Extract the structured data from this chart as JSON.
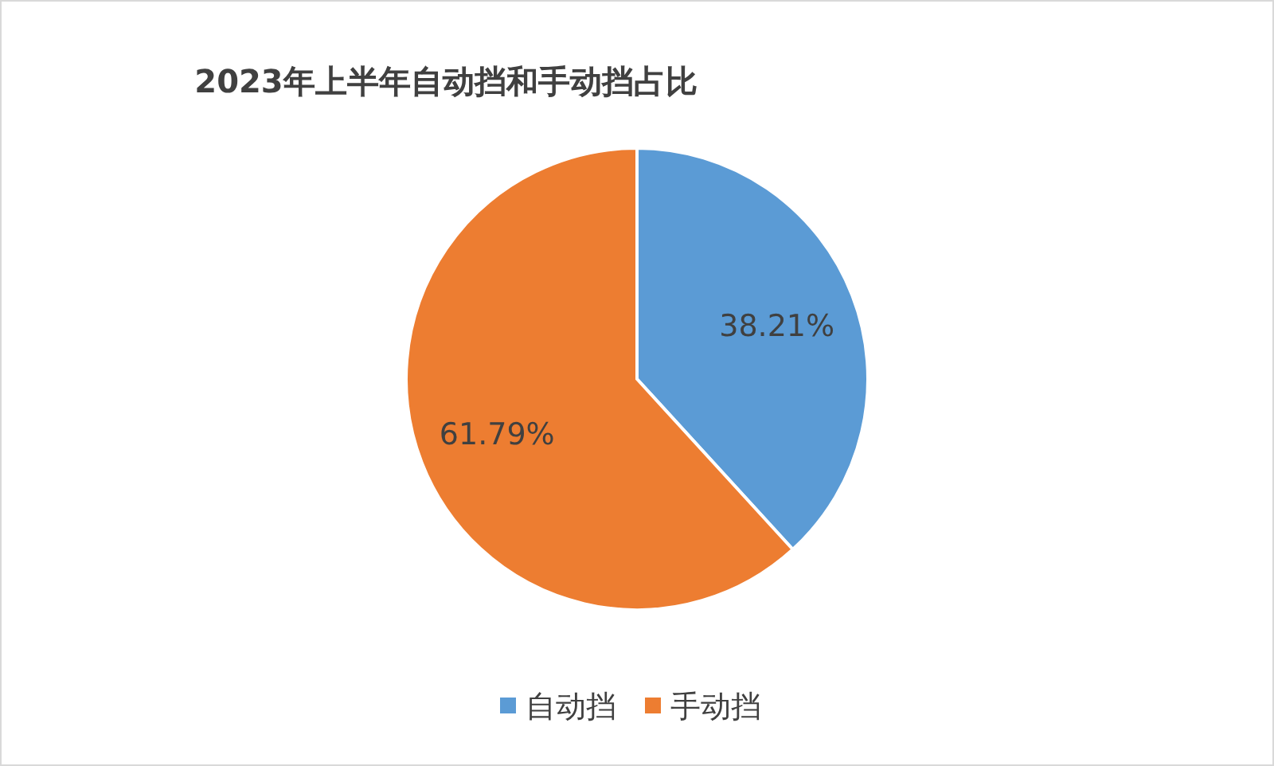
{
  "chart_data": {
    "type": "pie",
    "title": "2023年上半年自动挡和手动挡占比",
    "categories": [
      "自动挡",
      "手动挡"
    ],
    "values": [
      38.21,
      61.79
    ],
    "colors": [
      "#5b9bd5",
      "#ed7d31"
    ],
    "value_labels": [
      "38.21%",
      "61.79%"
    ],
    "legend": "bottom"
  }
}
